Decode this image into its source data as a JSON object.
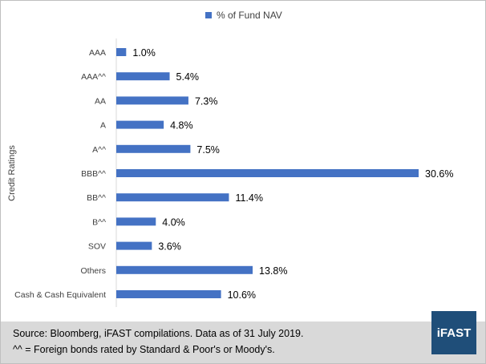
{
  "legend": {
    "label": "% of Fund NAV"
  },
  "colors": {
    "bar": "#4472c4",
    "footer": "#d9d9d9",
    "logo_bg": "#1f4e79"
  },
  "footer": {
    "line1": "Source: Bloomberg, iFAST compilations. Data as of 31 July 2019.",
    "line2": "^^ = Foreign bonds rated by Standard & Poor's or Moody's.",
    "logo": "iFAST"
  },
  "chart_data": {
    "type": "bar",
    "orientation": "horizontal",
    "ylabel": "Credit Ratings",
    "categories": [
      "AAA",
      "AAA^^",
      "AA",
      "A",
      "A^^",
      "BBB^^",
      "BB^^",
      "B^^",
      "SOV",
      "Others",
      "Cash & Cash Equivalent"
    ],
    "series": [
      {
        "name": "% of Fund NAV",
        "values": [
          1.0,
          5.4,
          7.3,
          4.8,
          7.5,
          30.6,
          11.4,
          4.0,
          3.6,
          13.8,
          10.6
        ],
        "labels": [
          "1.0%",
          "5.4%",
          "7.3%",
          "4.8%",
          "7.5%",
          "30.6%",
          "11.4%",
          "4.0%",
          "3.6%",
          "13.8%",
          "10.6%"
        ]
      }
    ],
    "xlim": [
      0,
      30.6
    ],
    "grid": false,
    "legend_position": "top"
  }
}
